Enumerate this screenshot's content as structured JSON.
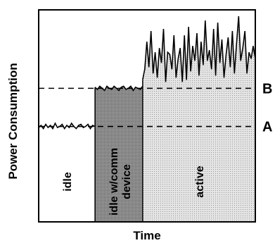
{
  "chart_data": {
    "type": "area",
    "xlabel": "Time",
    "ylabel": "Power Consumption",
    "ylim": [
      0,
      10
    ],
    "reference_lines": [
      {
        "label": "B",
        "value": 6.3
      },
      {
        "label": "A",
        "value": 4.5
      }
    ],
    "regions": [
      {
        "label": "idle",
        "x": [
          0,
          0.26
        ],
        "level": 4.5,
        "fill": "#ffffff"
      },
      {
        "label": "idle w/comm device",
        "x": [
          0.26,
          0.48
        ],
        "level": 6.3,
        "fill": "#8c8c8c"
      },
      {
        "label": "active",
        "x": [
          0.48,
          1
        ],
        "level": 8.5,
        "fill": "#dcdcdc"
      }
    ],
    "noise_traces": [
      {
        "region": "idle",
        "y": [
          4.45,
          4.55,
          4.4,
          4.6,
          4.45,
          4.55,
          4.4,
          4.65,
          4.45,
          4.5,
          4.6,
          4.4,
          4.55,
          4.45,
          4.65,
          4.5,
          4.4,
          4.55,
          4.6,
          4.45,
          4.5,
          4.6,
          4.4,
          4.55,
          4.5
        ]
      },
      {
        "region": "idle w/comm device",
        "y": [
          6.35,
          6.25,
          6.4,
          6.3,
          6.2,
          6.4,
          6.3,
          6.25,
          6.4,
          6.3,
          6.2,
          6.35,
          6.4,
          6.25,
          6.3,
          6.4,
          6.2,
          6.35,
          6.3,
          6.25,
          6.4
        ]
      },
      {
        "region": "active",
        "y": [
          6.7,
          7.2,
          8.5,
          7.3,
          9.0,
          7.0,
          8.0,
          6.8,
          8.2,
          7.5,
          9.1,
          6.6,
          8.0,
          7.9,
          7.2,
          8.8,
          6.8,
          7.7,
          8.2,
          6.6,
          8.8,
          6.7,
          9.2,
          7.1,
          8.3,
          7.6,
          8.9,
          6.9,
          8.5,
          7.4,
          9.5,
          7.6,
          8.1,
          7.2,
          9.1,
          6.9,
          9.4,
          7.5,
          8.6,
          6.8,
          7.9,
          8.7,
          7.3,
          9.0,
          7.0,
          8.4,
          9.7,
          7.6,
          8.2,
          9.0,
          7.0,
          8.0,
          7.7,
          8.3,
          7.7
        ]
      }
    ]
  }
}
